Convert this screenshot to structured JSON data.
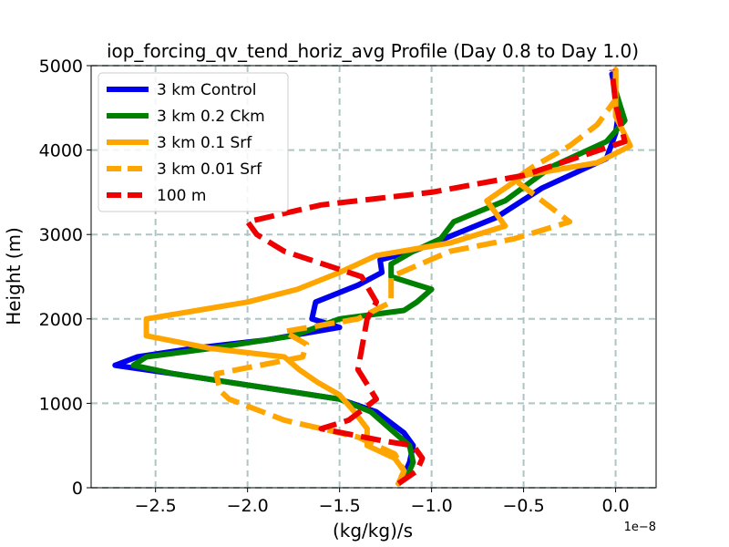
{
  "chart_data": {
    "type": "line",
    "title": "iop_forcing_qv_tend_horiz_avg Profile (Day 0.8 to Day 1.0)",
    "xlabel": "(kg/kg)/s",
    "ylabel": "Height (m)",
    "x_offset_label": "1e−8",
    "xlim": [
      -2.85,
      0.22
    ],
    "ylim": [
      0,
      5000
    ],
    "x_ticks": [
      -2.5,
      -2.0,
      -1.5,
      -1.0,
      -0.5,
      0.0
    ],
    "x_tick_labels": [
      "−2.5",
      "−2.0",
      "−1.5",
      "−1.0",
      "−0.5",
      "0.0"
    ],
    "y_ticks": [
      0,
      1000,
      2000,
      3000,
      4000,
      5000
    ],
    "y_tick_labels": [
      "0",
      "1000",
      "2000",
      "3000",
      "4000",
      "5000"
    ],
    "grid": true,
    "legend_position": "upper-left",
    "series": [
      {
        "name": "3 km Control",
        "color": "#0000ee",
        "dash": "solid",
        "points": [
          [
            -1.18,
            50
          ],
          [
            -1.15,
            150
          ],
          [
            -1.12,
            300
          ],
          [
            -1.1,
            500
          ],
          [
            -1.15,
            650
          ],
          [
            -1.3,
            900
          ],
          [
            -1.5,
            1050
          ],
          [
            -1.8,
            1150
          ],
          [
            -2.1,
            1250
          ],
          [
            -2.4,
            1350
          ],
          [
            -2.72,
            1450
          ],
          [
            -2.6,
            1550
          ],
          [
            -2.3,
            1650
          ],
          [
            -1.9,
            1750
          ],
          [
            -1.5,
            1900
          ],
          [
            -1.65,
            2000
          ],
          [
            -1.63,
            2200
          ],
          [
            -1.4,
            2400
          ],
          [
            -1.27,
            2550
          ],
          [
            -1.28,
            2700
          ],
          [
            -1.1,
            2800
          ],
          [
            -0.65,
            3200
          ],
          [
            -0.4,
            3550
          ],
          [
            -0.05,
            3900
          ],
          [
            0.0,
            4200
          ],
          [
            0.02,
            4500
          ],
          [
            -0.02,
            4900
          ]
        ]
      },
      {
        "name": "3 km 0.2 Ckm",
        "color": "#008000",
        "dash": "solid",
        "points": [
          [
            -1.18,
            50
          ],
          [
            -1.13,
            150
          ],
          [
            -1.1,
            300
          ],
          [
            -1.12,
            500
          ],
          [
            -1.2,
            650
          ],
          [
            -1.33,
            900
          ],
          [
            -1.5,
            1050
          ],
          [
            -1.8,
            1150
          ],
          [
            -2.1,
            1250
          ],
          [
            -2.4,
            1350
          ],
          [
            -2.62,
            1450
          ],
          [
            -2.55,
            1550
          ],
          [
            -2.2,
            1650
          ],
          [
            -1.75,
            1800
          ],
          [
            -1.5,
            2000
          ],
          [
            -1.15,
            2100
          ],
          [
            -1.08,
            2200
          ],
          [
            -1.0,
            2350
          ],
          [
            -1.22,
            2500
          ],
          [
            -1.22,
            2650
          ],
          [
            -1.1,
            2800
          ],
          [
            -0.95,
            2950
          ],
          [
            -0.88,
            3150
          ],
          [
            -0.6,
            3400
          ],
          [
            -0.35,
            3800
          ],
          [
            -0.05,
            4100
          ],
          [
            0.05,
            4350
          ],
          [
            0.0,
            4700
          ],
          [
            0.0,
            4950
          ]
        ]
      },
      {
        "name": "3 km 0.1 Srf",
        "color": "#ffa500",
        "dash": "solid",
        "points": [
          [
            -1.18,
            50
          ],
          [
            -1.15,
            200
          ],
          [
            -1.2,
            350
          ],
          [
            -1.35,
            500
          ],
          [
            -1.35,
            700
          ],
          [
            -1.42,
            900
          ],
          [
            -1.5,
            1100
          ],
          [
            -1.62,
            1250
          ],
          [
            -1.72,
            1400
          ],
          [
            -1.8,
            1550
          ],
          [
            -2.2,
            1650
          ],
          [
            -2.55,
            1800
          ],
          [
            -2.55,
            2000
          ],
          [
            -2.0,
            2200
          ],
          [
            -1.73,
            2350
          ],
          [
            -1.5,
            2550
          ],
          [
            -1.3,
            2750
          ],
          [
            -0.9,
            2900
          ],
          [
            -0.6,
            3100
          ],
          [
            -0.7,
            3400
          ],
          [
            -0.5,
            3700
          ],
          [
            -0.1,
            3850
          ],
          [
            0.08,
            4050
          ],
          [
            0.0,
            4400
          ],
          [
            0.0,
            4950
          ]
        ]
      },
      {
        "name": "3 km 0.01 Srf",
        "color": "#ffa500",
        "dash": "dashed",
        "points": [
          [
            -1.18,
            50
          ],
          [
            -1.15,
            200
          ],
          [
            -1.2,
            400
          ],
          [
            -1.4,
            600
          ],
          [
            -1.8,
            800
          ],
          [
            -2.1,
            1050
          ],
          [
            -2.15,
            1150
          ],
          [
            -2.17,
            1350
          ],
          [
            -1.7,
            1550
          ],
          [
            -1.68,
            1700
          ],
          [
            -1.8,
            1850
          ],
          [
            -1.4,
            2000
          ],
          [
            -1.22,
            2200
          ],
          [
            -1.22,
            2500
          ],
          [
            -0.9,
            2800
          ],
          [
            -0.55,
            2950
          ],
          [
            -0.25,
            3150
          ],
          [
            -0.4,
            3400
          ],
          [
            -0.55,
            3650
          ],
          [
            -0.45,
            3800
          ],
          [
            -0.25,
            4050
          ],
          [
            -0.1,
            4300
          ],
          [
            0.0,
            4600
          ],
          [
            0.0,
            4950
          ]
        ]
      },
      {
        "name": "100 m",
        "color": "#ee0000",
        "dash": "dashed",
        "points": [
          [
            -1.18,
            50
          ],
          [
            -1.08,
            200
          ],
          [
            -1.05,
            350
          ],
          [
            -1.1,
            500
          ],
          [
            -1.25,
            550
          ],
          [
            -1.6,
            700
          ],
          [
            -1.45,
            800
          ],
          [
            -1.3,
            1050
          ],
          [
            -1.4,
            1400
          ],
          [
            -1.35,
            2000
          ],
          [
            -1.3,
            2200
          ],
          [
            -1.38,
            2500
          ],
          [
            -1.52,
            2600
          ],
          [
            -1.8,
            2800
          ],
          [
            -1.95,
            3000
          ],
          [
            -2.0,
            3150
          ],
          [
            -1.6,
            3350
          ],
          [
            -1.0,
            3500
          ],
          [
            -0.5,
            3700
          ],
          [
            0.05,
            4100
          ],
          [
            0.0,
            4550
          ],
          [
            -0.02,
            4950
          ]
        ]
      }
    ]
  }
}
